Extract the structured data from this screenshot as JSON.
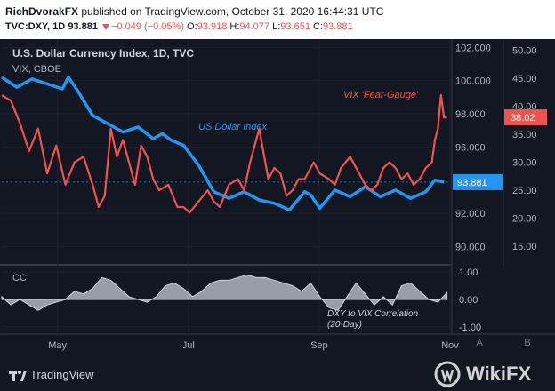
{
  "header": {
    "author": "RichDvorakFX",
    "published": "published on TradingView.com, October 31, 2020 16:44:31 UTC",
    "symbol": "TVC:DXY, 1D",
    "last": "93.881",
    "change": "−0.049 (−0.05%)",
    "o_label": "O:",
    "o_value": "93.918",
    "h_label": "H:",
    "h_value": "94.077",
    "l_label": "L:",
    "l_value": "93.651",
    "c_label": "C:",
    "c_value": "93.881"
  },
  "footer": {
    "tradingview": "TradingView",
    "watermark": "WikiFX",
    "button_a": "A",
    "button_b": "B"
  },
  "colors": {
    "dxy": "#2196f3",
    "vix": "#ef5350",
    "cc": "#b2b5be",
    "background": "#131722"
  },
  "chart_data": [
    {
      "type": "line",
      "title": "U.S. Dollar Currency Index, 1D, TVC",
      "subtitle": "VIX, CBOE",
      "x_ticks": [
        "May",
        "Jul",
        "Sep",
        "Nov"
      ],
      "x_range": [
        0,
        148
      ],
      "series": [
        {
          "name": "US Dollar Index",
          "axis": "dxy",
          "x": [
            0,
            5,
            10,
            15,
            20,
            22,
            25,
            30,
            35,
            40,
            45,
            50,
            53,
            56,
            60,
            65,
            70,
            75,
            80,
            85,
            90,
            95,
            100,
            102,
            105,
            110,
            115,
            120,
            125,
            130,
            135,
            140,
            143,
            146
          ],
          "values": [
            100.2,
            99.6,
            100.1,
            99.8,
            99.5,
            100.2,
            99.4,
            97.9,
            97.4,
            96.9,
            97.2,
            96.5,
            96.8,
            96.4,
            96.1,
            94.9,
            93.3,
            92.9,
            93.3,
            92.8,
            92.6,
            92.2,
            93.3,
            93.1,
            92.3,
            93.4,
            93.0,
            93.6,
            93.0,
            93.4,
            92.9,
            93.3,
            94.0,
            93.881
          ]
        },
        {
          "name": "VIX 'Fear-Gauge'",
          "axis": "vix",
          "x": [
            0,
            3,
            6,
            9,
            12,
            15,
            18,
            21,
            24,
            27,
            30,
            32,
            34,
            36,
            38,
            40,
            42,
            44,
            46,
            48,
            50,
            52,
            55,
            58,
            60,
            62,
            65,
            68,
            70,
            72,
            75,
            78,
            80,
            82,
            85,
            88,
            90,
            92,
            94,
            96,
            98,
            100,
            103,
            105,
            108,
            110,
            112,
            115,
            118,
            120,
            122,
            124,
            126,
            128,
            130,
            132,
            134,
            136,
            138,
            140,
            142,
            143,
            144,
            145,
            146,
            147
          ],
          "values": [
            42,
            41,
            37,
            32,
            36,
            28,
            33,
            26,
            30,
            31,
            26,
            22,
            24,
            36,
            31,
            34,
            30,
            26,
            33,
            31,
            27,
            25,
            26,
            22,
            22,
            21,
            23,
            25,
            23,
            22,
            26,
            27,
            25,
            30,
            36,
            27,
            29,
            28,
            24,
            25,
            27,
            27,
            30,
            28,
            27,
            26,
            29,
            31,
            28,
            26,
            25,
            26,
            29,
            30,
            29,
            27,
            28,
            26,
            27,
            29,
            30,
            34,
            36,
            42,
            38,
            38.02
          ]
        }
      ],
      "axes": {
        "dxy": {
          "ticks": [
            "90.000",
            "92.000",
            "94.000",
            "96.000",
            "98.000",
            "100.000",
            "102.000"
          ],
          "range": [
            89,
            102.5
          ]
        },
        "vix": {
          "ticks": [
            "15.00",
            "20.00",
            "25.00",
            "30.00",
            "35.00",
            "40.00",
            "45.00",
            "50.00"
          ],
          "range": [
            12,
            52
          ]
        }
      },
      "last_labels": {
        "dxy": "93.881",
        "vix": "38.02"
      },
      "annotations": {
        "dxy": "US Dollar Index",
        "vix": "VIX 'Fear-Gauge'"
      }
    },
    {
      "type": "area",
      "title": "CC",
      "annotation": "DXY to VIX Correlation (20-Day)",
      "annotation_line1": "DXY to VIX Correlation",
      "annotation_line2": "(20-Day)",
      "ticks": [
        "1.00",
        "0.00",
        "-1.00"
      ],
      "ylim": [
        -1.2,
        1.2
      ],
      "x": [
        0,
        3,
        6,
        9,
        12,
        15,
        18,
        21,
        24,
        27,
        30,
        33,
        36,
        39,
        42,
        45,
        48,
        51,
        54,
        57,
        60,
        63,
        66,
        69,
        72,
        75,
        78,
        81,
        84,
        87,
        90,
        93,
        96,
        99,
        102,
        105,
        108,
        111,
        114,
        117,
        120,
        123,
        126,
        129,
        132,
        135,
        138,
        141,
        144,
        147
      ],
      "values": [
        0.1,
        -0.2,
        0.0,
        -0.2,
        -0.4,
        -0.2,
        -0.1,
        0.0,
        0.3,
        0.2,
        0.4,
        0.8,
        0.7,
        0.4,
        0.1,
        0.0,
        -0.1,
        0.1,
        0.5,
        0.6,
        0.4,
        0.1,
        0.3,
        0.6,
        0.7,
        0.7,
        0.8,
        0.9,
        0.8,
        0.8,
        0.7,
        0.6,
        0.5,
        0.3,
        0.6,
        0.1,
        -0.3,
        -0.4,
        0.1,
        0.6,
        0.2,
        -0.2,
        0.1,
        -0.2,
        0.5,
        0.6,
        0.3,
        0.0,
        -0.1,
        0.25
      ]
    }
  ]
}
